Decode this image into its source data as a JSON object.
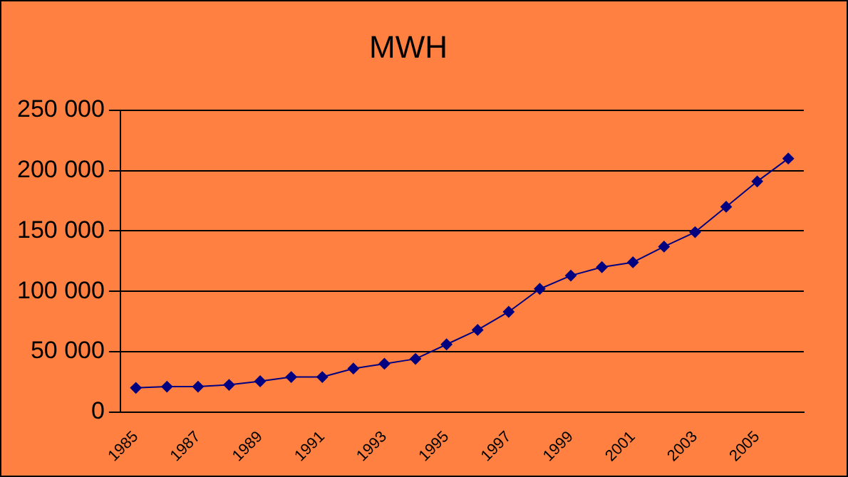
{
  "chart_data": {
    "type": "line",
    "title": "MWH",
    "categories": [
      "1985",
      null,
      "1987",
      null,
      "1989",
      null,
      "1991",
      null,
      "1993",
      null,
      "1995",
      null,
      "1997",
      null,
      "1999",
      null,
      "2001",
      null,
      "2003",
      null,
      "2005",
      null
    ],
    "series": [
      {
        "color": "#000080",
        "values": [
          20000,
          21000,
          21000,
          22500,
          25500,
          29000,
          29000,
          36000,
          40000,
          44000,
          56000,
          68000,
          83000,
          102000,
          113000,
          120000,
          124000,
          137000,
          149000,
          170000,
          191000,
          210000
        ]
      }
    ],
    "ylim": [
      0,
      250000
    ],
    "yticks": [
      {
        "value": 0,
        "label": "0"
      },
      {
        "value": 50000,
        "label": "50 000"
      },
      {
        "value": 100000,
        "label": "100 000"
      },
      {
        "value": 150000,
        "label": "150 000"
      },
      {
        "value": 200000,
        "label": "200 000"
      },
      {
        "value": 250000,
        "label": "250 000"
      }
    ],
    "grid": "y",
    "legend": false,
    "marker": "diamond",
    "line_style": "solid"
  }
}
